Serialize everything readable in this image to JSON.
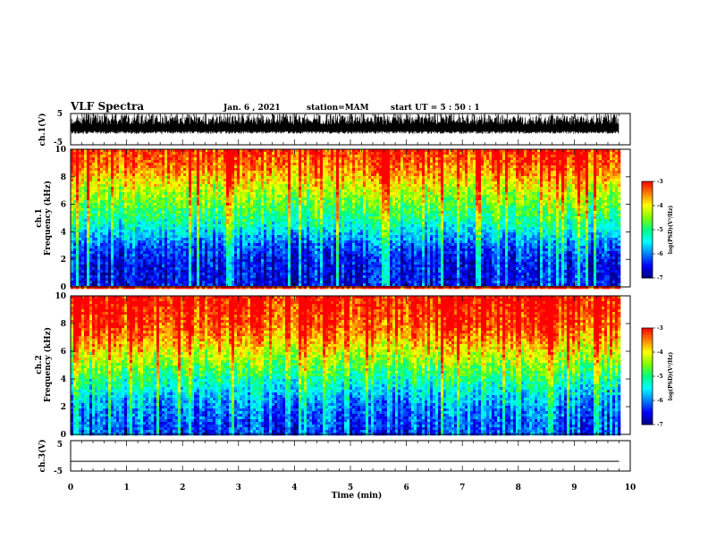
{
  "header": {
    "title": "VLF Spectra",
    "date": "Jan. 6 , 2021",
    "station": "station=MAM",
    "start": "start UT =  5 : 50 : 1"
  },
  "colors": {
    "colormap": [
      "#000080",
      "#0000ff",
      "#0080ff",
      "#00ffff",
      "#00ff80",
      "#80ff00",
      "#ffff00",
      "#ff8000",
      "#ff0000",
      "#ffffff"
    ],
    "waveform": "#000000",
    "axes": "#000000"
  },
  "chart_data": [
    {
      "type": "line",
      "panel": "ch1-waveform",
      "ylabel": "ch.1(V)",
      "ylim": [
        -5,
        5
      ],
      "yticks": [
        "5",
        "-5"
      ],
      "xlim": [
        0,
        10
      ],
      "description_values": "noisy waveform, values mostly between -1.5 and 5 V, data present for t = 0 to 9.8 min"
    },
    {
      "type": "heatmap",
      "panel": "ch1-spectrogram",
      "label": "ch.1",
      "ylabel": "Frequency (kHz)",
      "ylim": [
        0,
        10
      ],
      "yticks": [
        "0",
        "2",
        "4",
        "6",
        "8",
        "10"
      ],
      "xlim": [
        0,
        10
      ],
      "data_end": 9.8,
      "colorbar": {
        "label": "log(PSD)(V²/Hz)",
        "range": [
          -7,
          -3
        ],
        "ticks": [
          "-3",
          "-4",
          "-5",
          "-6",
          "-7"
        ]
      },
      "level_profile": [
        {
          "freq": 0.0,
          "value": -6.6
        },
        {
          "freq": 1.0,
          "value": -6.6
        },
        {
          "freq": 2.0,
          "value": -6.5
        },
        {
          "freq": 3.0,
          "value": -6.2
        },
        {
          "freq": 4.0,
          "value": -5.6
        },
        {
          "freq": 5.0,
          "value": -5.1
        },
        {
          "freq": 6.0,
          "value": -4.7
        },
        {
          "freq": 7.0,
          "value": -4.3
        },
        {
          "freq": 8.0,
          "value": -3.8
        },
        {
          "freq": 9.0,
          "value": -3.4
        },
        {
          "freq": 10.0,
          "value": -3.2
        }
      ]
    },
    {
      "type": "heatmap",
      "panel": "ch2-spectrogram",
      "label": "ch.2",
      "ylabel": "Frequency (kHz)",
      "ylim": [
        0,
        10
      ],
      "yticks": [
        "0",
        "2",
        "4",
        "6",
        "8",
        "10"
      ],
      "xlim": [
        0,
        10
      ],
      "data_end": 9.8,
      "colorbar": {
        "label": "log(PSD)(V²/Hz)",
        "range": [
          -7,
          -3
        ],
        "ticks": [
          "-3",
          "-4",
          "-5",
          "-6",
          "-7"
        ]
      },
      "level_profile": [
        {
          "freq": 0.0,
          "value": -6.3
        },
        {
          "freq": 1.0,
          "value": -6.2
        },
        {
          "freq": 2.0,
          "value": -6.0
        },
        {
          "freq": 3.0,
          "value": -5.6
        },
        {
          "freq": 4.0,
          "value": -5.1
        },
        {
          "freq": 5.0,
          "value": -4.6
        },
        {
          "freq": 6.0,
          "value": -4.1
        },
        {
          "freq": 7.0,
          "value": -3.6
        },
        {
          "freq": 8.0,
          "value": -3.3
        },
        {
          "freq": 9.0,
          "value": -3.1
        },
        {
          "freq": 10.0,
          "value": -3.0
        }
      ]
    },
    {
      "type": "line",
      "panel": "ch3-waveform",
      "ylabel": "ch.3(V)",
      "ylim": [
        -5,
        5
      ],
      "yticks": [
        "5",
        "-5"
      ],
      "xlim": [
        0,
        10
      ],
      "x": [
        0,
        9.8
      ],
      "y": [
        -1.8,
        -1.8
      ]
    }
  ],
  "xaxis": {
    "label": "Time (min)",
    "ticks": [
      "0",
      "1",
      "2",
      "3",
      "4",
      "5",
      "6",
      "7",
      "8",
      "9",
      "10"
    ]
  }
}
